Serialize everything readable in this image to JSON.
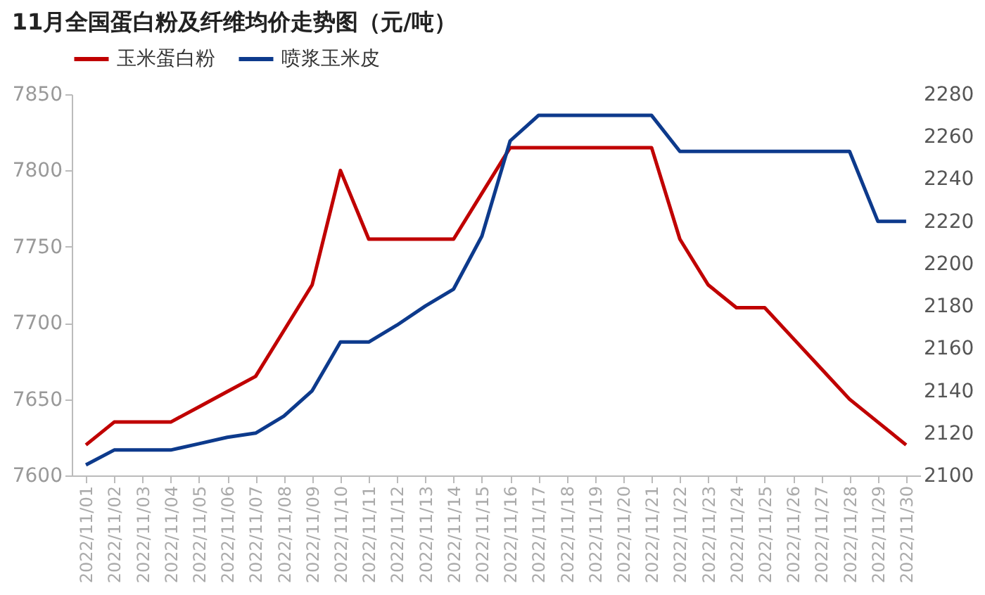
{
  "chart_data": {
    "type": "line",
    "title": "11月全国蛋白粉及纤维均价走势图（元/吨）",
    "categories": [
      "2022/11/01",
      "2022/11/02",
      "2022/11/03",
      "2022/11/04",
      "2022/11/05",
      "2022/11/06",
      "2022/11/07",
      "2022/11/08",
      "2022/11/09",
      "2022/11/10",
      "2022/11/11",
      "2022/11/12",
      "2022/11/13",
      "2022/11/14",
      "2022/11/15",
      "2022/11/16",
      "2022/11/17",
      "2022/11/18",
      "2022/11/19",
      "2022/11/20",
      "2022/11/21",
      "2022/11/22",
      "2022/11/23",
      "2022/11/24",
      "2022/11/25",
      "2022/11/26",
      "2022/11/27",
      "2022/11/28",
      "2022/11/29",
      "2022/11/30"
    ],
    "series": [
      {
        "name": "玉米蛋白粉",
        "color": "#c00000",
        "axis": "y",
        "values": [
          7620,
          7635,
          7635,
          7635,
          7645,
          7655,
          7665,
          7695,
          7725,
          7800,
          7755,
          7755,
          7755,
          7755,
          7785,
          7815,
          7815,
          7815,
          7815,
          7815,
          7815,
          7755,
          7725,
          7710,
          7710,
          7690,
          7670,
          7650,
          7635,
          7620
        ]
      },
      {
        "name": "喷浆玉米皮",
        "color": "#0d3a8c",
        "axis": "y2",
        "values": [
          2105,
          2112,
          2112,
          2112,
          2115,
          2118,
          2120,
          2128,
          2140,
          2163,
          2163,
          2171,
          2180,
          2188,
          2213,
          2258,
          2270,
          2270,
          2270,
          2270,
          2270,
          2253,
          2253,
          2253,
          2253,
          2253,
          2253,
          2253,
          2220,
          2220
        ]
      }
    ],
    "ylim": [
      7600,
      7850
    ],
    "yticks": [
      7600,
      7650,
      7700,
      7750,
      7800,
      7850
    ],
    "y2lim": [
      2100,
      2280
    ],
    "y2ticks": [
      2100,
      2120,
      2140,
      2160,
      2180,
      2200,
      2220,
      2240,
      2260,
      2280
    ],
    "grid": false,
    "legend": "top",
    "marker": "none",
    "line_style": "solid"
  }
}
